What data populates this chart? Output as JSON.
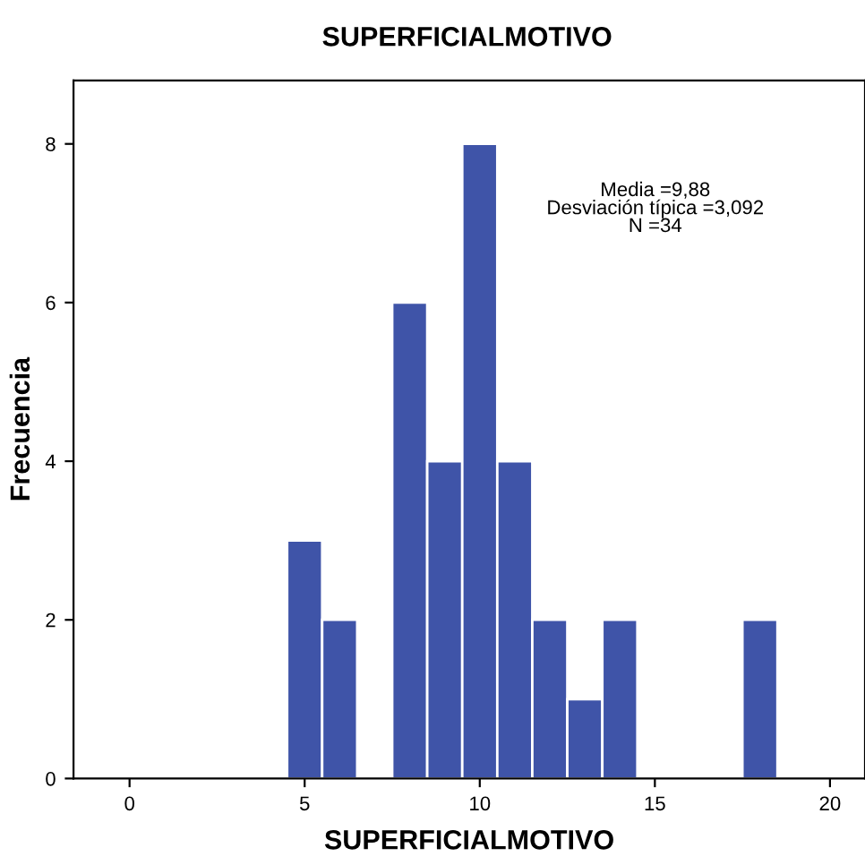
{
  "chart_data": {
    "type": "histogram",
    "title": "SUPERFICIALMOTIVO",
    "xlabel": "SUPERFICIALMOTIVO",
    "ylabel": "Frecuencia",
    "bins": [
      4.5,
      5.5,
      6.5,
      7.5,
      8.5,
      9.5,
      10.5,
      11.5,
      12.5,
      13.5,
      14.5,
      15.5,
      16.5,
      17.5,
      18.5
    ],
    "values": [
      3,
      2,
      0,
      6,
      4,
      8,
      4,
      2,
      1,
      2,
      0,
      0,
      0,
      2
    ],
    "color": "#3f54a8",
    "xlim": [
      -1.6,
      21
    ],
    "xticks": [
      0,
      5,
      10,
      15,
      20
    ],
    "ylim": [
      0,
      8.8
    ],
    "yticks": [
      0,
      2,
      4,
      6,
      8
    ],
    "grid": false,
    "annotations": [
      "Media =9,88\nDesviación típica =3,092\nN =34"
    ]
  }
}
